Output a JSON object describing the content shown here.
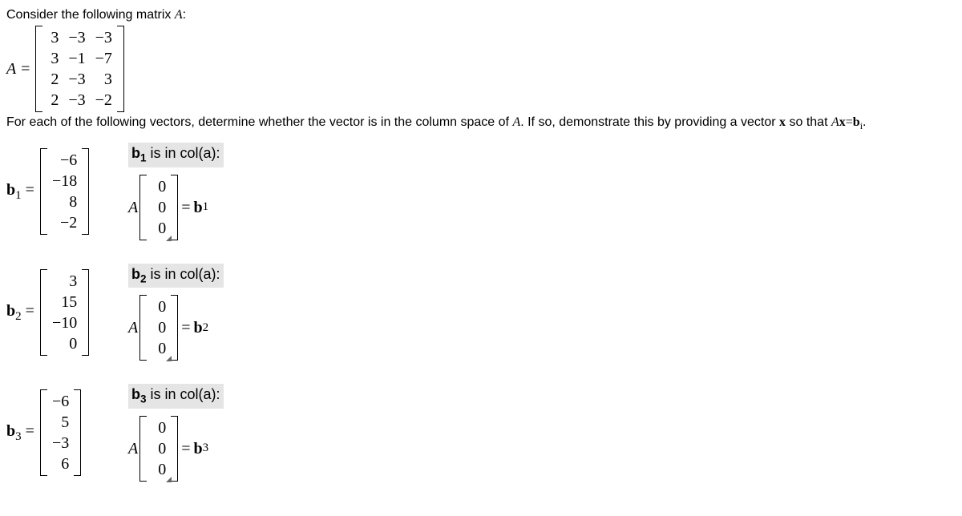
{
  "intro": {
    "line1_prefix": "Consider the following matrix ",
    "line1_var": "A",
    "line1_suffix": ":",
    "A_label": "A =",
    "A_matrix": {
      "cols": [
        [
          "3",
          "3",
          "2",
          "2"
        ],
        [
          "−3",
          "−1",
          "−3",
          "−3"
        ],
        [
          "−3",
          "−7",
          "3",
          "−2"
        ]
      ]
    },
    "line2_a": "For each of the following vectors, determine whether the vector is in the column space of ",
    "line2_var1": "A",
    "line2_b": ". If so, demonstrate this by providing a vector ",
    "line2_var2": "x",
    "line2_c": " so that ",
    "line2_eq_A": "A",
    "line2_eq_x": "x",
    "line2_eq_eq": "=",
    "line2_eq_b": "b",
    "line2_eq_sub": "i",
    "line2_d": "."
  },
  "problems": [
    {
      "label": "b",
      "sub": "1",
      "vector": [
        "−6",
        "−18",
        "8",
        "−2"
      ],
      "header_b": "b",
      "header_sub": "1",
      "header_rest": " is in col(a):",
      "ans_A": "A",
      "ans_x": [
        "0",
        "0",
        "0"
      ],
      "ans_eq": "= ",
      "ans_b": "b",
      "ans_bsub": "1"
    },
    {
      "label": "b",
      "sub": "2",
      "vector": [
        "3",
        "15",
        "−10",
        "0"
      ],
      "header_b": "b",
      "header_sub": "2",
      "header_rest": " is in col(a):",
      "ans_A": "A",
      "ans_x": [
        "0",
        "0",
        "0"
      ],
      "ans_eq": "= ",
      "ans_b": "b",
      "ans_bsub": "2"
    },
    {
      "label": "b",
      "sub": "3",
      "vector": [
        "−6",
        "5",
        "−3",
        "6"
      ],
      "header_b": "b",
      "header_sub": "3",
      "header_rest": " is in col(a):",
      "ans_A": "A",
      "ans_x": [
        "0",
        "0",
        "0"
      ],
      "ans_eq": "= ",
      "ans_b": "b",
      "ans_bsub": "3"
    }
  ]
}
